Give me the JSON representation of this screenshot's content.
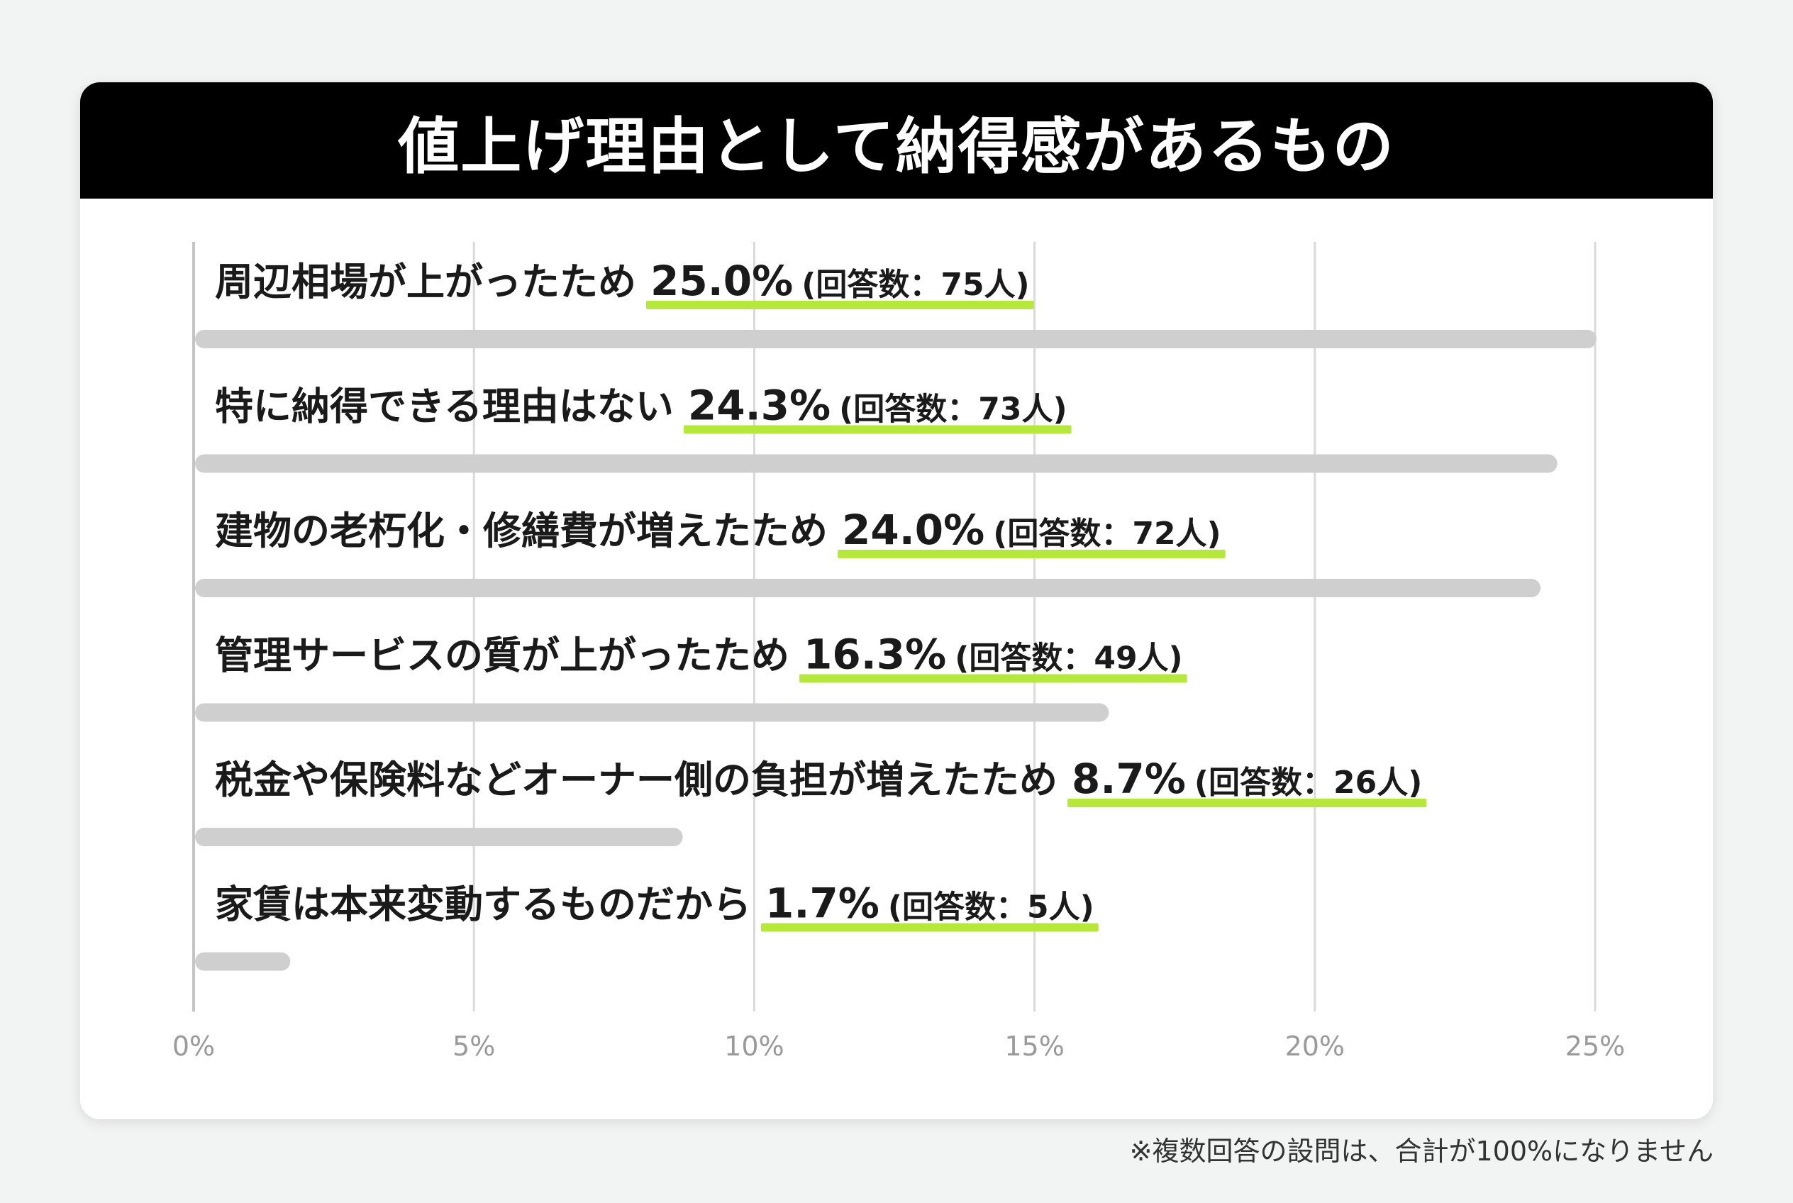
{
  "title": "値上げ理由として納得感があるもの",
  "footnote": "※複数回答の設問は、合計が100%になりません",
  "colors": {
    "header_bg": "#000000",
    "bar": "#cfcfcf",
    "highlight": "#b5e83a",
    "grid": "#d9d9d9",
    "text": "#1a1a1a",
    "tick": "#9a9a9a"
  },
  "chart_data": {
    "type": "bar",
    "orientation": "horizontal",
    "xlim": [
      0,
      25
    ],
    "xticks": [
      "0%",
      "5%",
      "10%",
      "15%",
      "20%",
      "25%"
    ],
    "grid": true,
    "categories": [
      {
        "label": "周辺相場が上がったため",
        "value": 25.0,
        "value_text": "25.0%",
        "count_text": "(回答数：75人)"
      },
      {
        "label": "特に納得できる理由はない",
        "value": 24.3,
        "value_text": "24.3%",
        "count_text": "(回答数：73人)"
      },
      {
        "label": "建物の老朽化・修繕費が増えたため",
        "value": 24.0,
        "value_text": "24.0%",
        "count_text": "(回答数：72人)"
      },
      {
        "label": "管理サービスの質が上がったため",
        "value": 16.3,
        "value_text": "16.3%",
        "count_text": "(回答数：49人)"
      },
      {
        "label": "税金や保険料などオーナー側の負担が増えたため",
        "value": 8.7,
        "value_text": "8.7%",
        "count_text": "(回答数：26人)"
      },
      {
        "label": "家賃は本来変動するものだから",
        "value": 1.7,
        "value_text": "1.7%",
        "count_text": "(回答数：5人)"
      }
    ]
  }
}
